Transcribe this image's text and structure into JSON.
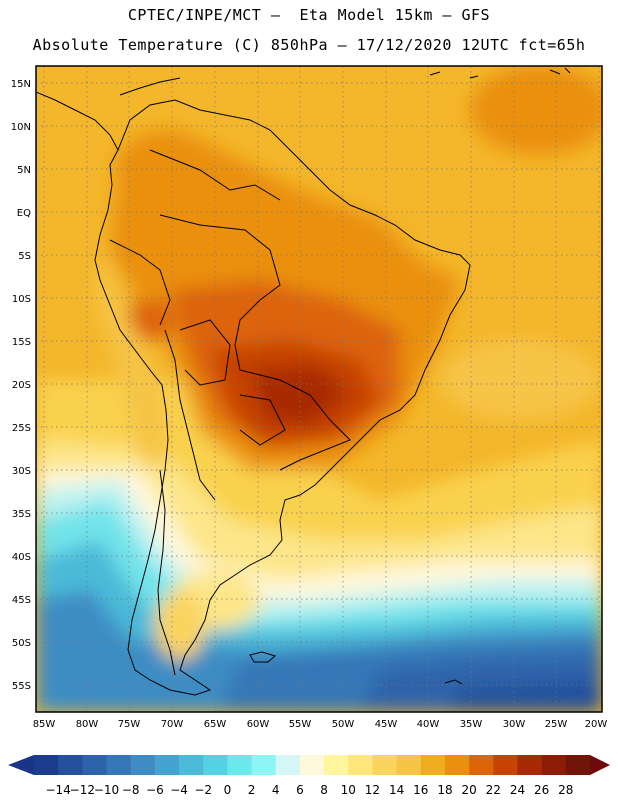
{
  "title": {
    "line1": "CPTEC/INPE/MCT –  Eta Model 15km – GFS",
    "line2": "Absolute Temperature (C) 850hPa – 17/12/2020 12UTC fct=65h"
  },
  "axes": {
    "lat_labels": [
      "15N",
      "10N",
      "5N",
      "EQ",
      "5S",
      "10S",
      "15S",
      "20S",
      "25S",
      "30S",
      "35S",
      "40S",
      "45S",
      "50S",
      "55S"
    ],
    "lon_labels": [
      "85W",
      "80W",
      "75W",
      "70W",
      "65W",
      "60W",
      "55W",
      "50W",
      "45W",
      "40W",
      "35W",
      "30W",
      "25W",
      "20W"
    ]
  },
  "colorbar": {
    "ticks": [
      "-14",
      "-12",
      "-10",
      "-8",
      "-6",
      "-4",
      "-2",
      "0",
      "2",
      "4",
      "6",
      "8",
      "10",
      "12",
      "14",
      "16",
      "18",
      "20",
      "22",
      "24",
      "26",
      "28"
    ],
    "colors": [
      "#1c3d8f",
      "#24509c",
      "#2d63aa",
      "#3577b7",
      "#3e8cc4",
      "#45a3cf",
      "#4cbad8",
      "#55d2e2",
      "#6ae8ec",
      "#8ef5f5",
      "#d6f7f7",
      "#fff8dc",
      "#fff59c",
      "#fee67a",
      "#fbd45e",
      "#f6c446",
      "#f0ac1c",
      "#ea900e",
      "#dd6408",
      "#c64304",
      "#a82a04",
      "#8c1c06",
      "#701508"
    ],
    "under_color": "#1a3585",
    "over_color": "#6e0a0a"
  }
}
